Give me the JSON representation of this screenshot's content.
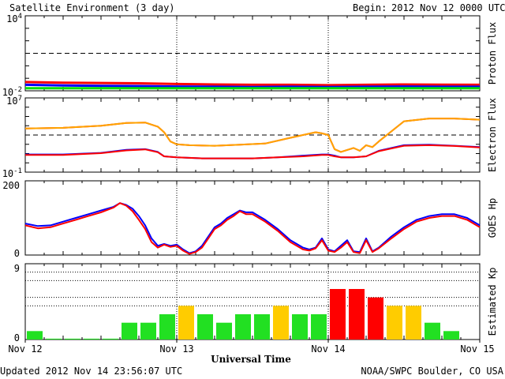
{
  "header": {
    "title": "Satellite Environment (3 day)",
    "begin_label": "Begin:",
    "begin_value": "2012 Nov 12 0000 UTC"
  },
  "footer": {
    "updated": "Updated 2012 Nov 14 23:56:07 UTC",
    "credit": "NOAA/SWPC Boulder, CO USA"
  },
  "colors": {
    "red": "#ff0000",
    "blue": "#0000ff",
    "green": "#00e000",
    "orange": "#ffa500",
    "kp_green": "#22e022",
    "kp_yellow": "#ffcc00",
    "kp_red": "#ff0000"
  },
  "chart_data": [
    {
      "id": "proton",
      "type": "line",
      "ylabel": "Proton Flux",
      "log_scale": true,
      "ylim": [
        0.01,
        10000
      ],
      "y_ticks": [
        {
          "base": "10",
          "exp": "4",
          "value": 10000
        },
        {
          "base": "10",
          "exp": "-2",
          "value": 0.01
        }
      ],
      "threshold": 10,
      "x_range_hours": [
        0,
        72
      ],
      "series": [
        {
          "color": "red",
          "x": [
            0,
            6,
            12,
            18,
            24,
            30,
            36,
            42,
            48,
            54,
            60,
            66,
            72
          ],
          "y": [
            0.05,
            0.045,
            0.042,
            0.04,
            0.035,
            0.032,
            0.03,
            0.03,
            0.028,
            0.03,
            0.032,
            0.031,
            0.03
          ]
        },
        {
          "color": "blue",
          "x": [
            0,
            6,
            12,
            18,
            24,
            30,
            36,
            42,
            48,
            54,
            60,
            66,
            72
          ],
          "y": [
            0.03,
            0.027,
            0.025,
            0.024,
            0.022,
            0.021,
            0.02,
            0.021,
            0.02,
            0.021,
            0.022,
            0.021,
            0.021
          ]
        },
        {
          "color": "green",
          "x": [
            0,
            6,
            12,
            18,
            24,
            30,
            36,
            42,
            48,
            54,
            60,
            66,
            72
          ],
          "y": [
            0.016,
            0.016,
            0.016,
            0.016,
            0.016,
            0.016,
            0.016,
            0.016,
            0.016,
            0.016,
            0.016,
            0.016,
            0.016
          ]
        }
      ]
    },
    {
      "id": "electron",
      "type": "line",
      "ylabel": "Electron Flux",
      "log_scale": true,
      "ylim": [
        0.1,
        10000000
      ],
      "y_ticks": [
        {
          "base": "10",
          "exp": "7",
          "value": 10000000
        },
        {
          "base": "10",
          "exp": "-1",
          "value": 0.1
        }
      ],
      "threshold": 1000,
      "x_range_hours": [
        0,
        72
      ],
      "series": [
        {
          "color": "red",
          "x": [
            0,
            6,
            12,
            16,
            19,
            21,
            22,
            23,
            24,
            26,
            30,
            34,
            38,
            42,
            46,
            47,
            48,
            49,
            50,
            52,
            53,
            54,
            55,
            56,
            60,
            64,
            68,
            72
          ],
          "y": [
            5000,
            6000,
            10000,
            20000,
            22000,
            8000,
            2000,
            200,
            100,
            80,
            70,
            90,
            120,
            500,
            2000,
            1500,
            1000,
            30,
            15,
            40,
            20,
            80,
            50,
            200,
            30000,
            60000,
            60000,
            45000
          ]
        },
        {
          "color": "orange",
          "x": [
            0,
            6,
            12,
            16,
            19,
            21,
            22,
            23,
            24,
            26,
            30,
            34,
            38,
            42,
            46,
            47,
            48,
            49,
            50,
            52,
            53,
            54,
            55,
            56,
            60,
            64,
            68,
            72
          ],
          "y": [
            5000,
            6000,
            10000,
            20000,
            22000,
            8000,
            2000,
            200,
            100,
            80,
            70,
            90,
            120,
            500,
            2000,
            1500,
            1000,
            30,
            15,
            40,
            20,
            80,
            50,
            200,
            30000,
            60000,
            60000,
            45000
          ]
        },
        {
          "color": "blue",
          "x": [
            0,
            6,
            12,
            16,
            19,
            21,
            22,
            24,
            28,
            32,
            36,
            40,
            44,
            47,
            48,
            49,
            50,
            52,
            54,
            56,
            60,
            64,
            68,
            72
          ],
          "y": [
            8,
            8,
            12,
            25,
            30,
            15,
            5,
            4,
            3,
            3,
            3,
            4,
            6,
            8,
            8,
            6,
            4,
            4,
            5,
            20,
            80,
            90,
            70,
            50
          ]
        },
        {
          "color": "red",
          "x": [
            0,
            6,
            12,
            16,
            19,
            21,
            22,
            24,
            28,
            32,
            36,
            40,
            44,
            47,
            48,
            49,
            50,
            52,
            54,
            56,
            60,
            64,
            68,
            72
          ],
          "y": [
            7,
            7,
            11,
            22,
            28,
            14,
            5,
            4,
            3,
            3,
            3,
            4,
            5,
            7,
            7,
            5,
            4,
            4,
            5,
            18,
            70,
            80,
            65,
            45
          ]
        }
      ]
    },
    {
      "id": "goes_hp",
      "type": "line",
      "ylabel": "GOES Hp",
      "ylim": [
        0,
        200
      ],
      "y_ticks": [
        {
          "label": "200",
          "value": 200
        },
        {
          "label": "0",
          "value": 0
        }
      ],
      "x_range_hours": [
        0,
        72
      ],
      "series": [
        {
          "color": "blue",
          "x": [
            0,
            2,
            4,
            6,
            8,
            10,
            12,
            14,
            15,
            16,
            17,
            18,
            19,
            20,
            21,
            22,
            23,
            24,
            25,
            26,
            27,
            28,
            29,
            30,
            31,
            32,
            33,
            34,
            35,
            36,
            38,
            40,
            42,
            44,
            45,
            46,
            47,
            48,
            49,
            50,
            51,
            52,
            53,
            54,
            55,
            56,
            58,
            60,
            62,
            64,
            66,
            68,
            70,
            72
          ],
          "y": [
            85,
            78,
            80,
            90,
            100,
            110,
            120,
            130,
            140,
            135,
            125,
            105,
            80,
            45,
            25,
            30,
            25,
            28,
            15,
            5,
            10,
            25,
            50,
            75,
            85,
            100,
            110,
            120,
            115,
            115,
            95,
            70,
            40,
            20,
            15,
            20,
            45,
            15,
            10,
            25,
            40,
            10,
            8,
            45,
            10,
            20,
            50,
            75,
            95,
            105,
            110,
            110,
            100,
            80
          ]
        },
        {
          "color": "red",
          "x": [
            0,
            2,
            4,
            6,
            8,
            10,
            12,
            14,
            15,
            16,
            17,
            18,
            19,
            20,
            21,
            22,
            23,
            24,
            25,
            26,
            27,
            28,
            29,
            30,
            31,
            32,
            33,
            34,
            35,
            36,
            38,
            40,
            42,
            44,
            45,
            46,
            47,
            48,
            49,
            50,
            51,
            52,
            53,
            54,
            55,
            56,
            58,
            60,
            62,
            64,
            66,
            68,
            70,
            72
          ],
          "y": [
            80,
            72,
            75,
            85,
            95,
            105,
            115,
            128,
            140,
            133,
            118,
            95,
            70,
            35,
            20,
            28,
            22,
            25,
            12,
            3,
            8,
            20,
            45,
            70,
            80,
            95,
            105,
            118,
            110,
            110,
            90,
            65,
            35,
            15,
            12,
            18,
            40,
            12,
            8,
            20,
            35,
            8,
            5,
            40,
            8,
            18,
            45,
            70,
            90,
            100,
            105,
            105,
            95,
            75
          ]
        }
      ]
    },
    {
      "id": "kp",
      "type": "bar",
      "ylabel": "Estimated Kp",
      "ylim": [
        0,
        9
      ],
      "y_ticks": [
        {
          "label": "9",
          "value": 9
        },
        {
          "label": "0",
          "value": 0
        }
      ],
      "reference_lines": [
        4,
        5,
        7,
        8
      ],
      "values": [
        1,
        0.1,
        0.1,
        0.1,
        0.1,
        2,
        2,
        3,
        4,
        3,
        2,
        3,
        3,
        4,
        3,
        3,
        6,
        6,
        5,
        4,
        4,
        2,
        1
      ],
      "value_slot_count": 24,
      "color_rule": {
        "green_below": 4,
        "yellow_at": 4,
        "red_from": 5
      }
    }
  ],
  "x_axis": {
    "label": "Universal Time",
    "ticks": [
      {
        "label": "Nov 12",
        "hour": 0
      },
      {
        "label": "Nov 13",
        "hour": 24
      },
      {
        "label": "Nov 14",
        "hour": 48
      },
      {
        "label": "Nov 15",
        "hour": 72
      }
    ]
  }
}
